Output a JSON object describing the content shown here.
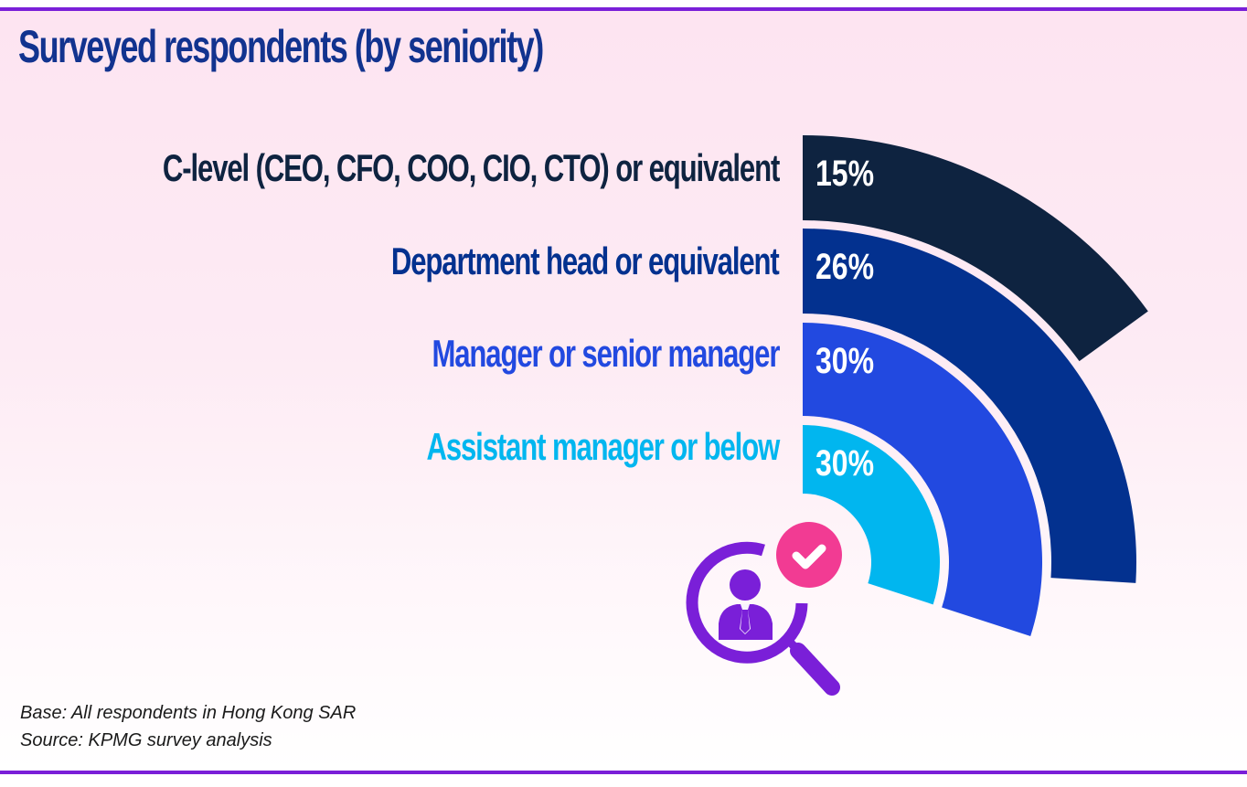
{
  "title": "Surveyed respondents (by seniority)",
  "footnotes": {
    "base": "Base: All respondents in Hong Kong SAR",
    "source": "Source: KPMG survey analysis"
  },
  "colors": {
    "accent_rule": "#7a1fd8",
    "title": "#12338f",
    "icon_purple": "#7a1fd8",
    "icon_pink": "#f23b93"
  },
  "chart_data": {
    "type": "radial-bar",
    "title": "Surveyed respondents (by seniority)",
    "unit": "%",
    "categories": [
      "C-level (CEO, CFO, COO, CIO, CTO) or equivalent",
      "Department head or equivalent",
      "Manager or senior manager",
      "Assistant manager or below"
    ],
    "values": [
      15,
      26,
      30,
      30
    ],
    "labels": [
      "15%",
      "26%",
      "30%",
      "30%"
    ],
    "series_colors": [
      "#0e2340",
      "#03318f",
      "#2249e0",
      "#01b6ef"
    ],
    "max_value": 100,
    "legend": "left (category labels aligned right, beside each ring)",
    "grid": false
  }
}
